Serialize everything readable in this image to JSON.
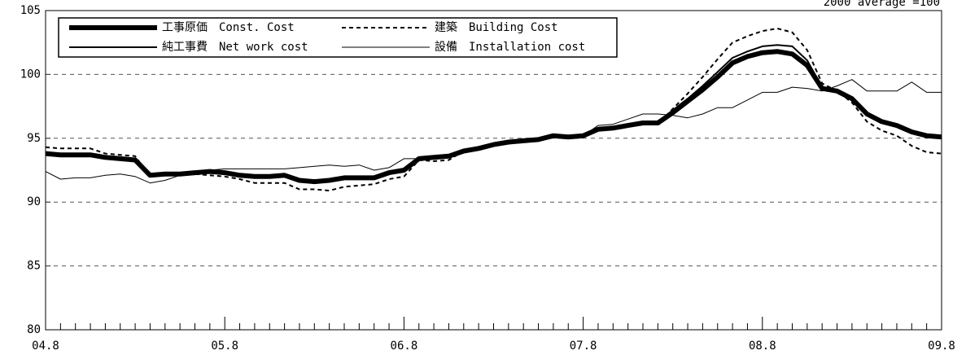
{
  "chart_data": {
    "type": "line",
    "note": "2000 average =100",
    "categories": [
      "04.8",
      null,
      null,
      null,
      null,
      null,
      null,
      null,
      null,
      null,
      null,
      null,
      "05.8",
      null,
      null,
      null,
      null,
      null,
      null,
      null,
      null,
      null,
      null,
      null,
      "06.8",
      null,
      null,
      null,
      null,
      null,
      null,
      null,
      null,
      null,
      null,
      null,
      "07.8",
      null,
      null,
      null,
      null,
      null,
      null,
      null,
      null,
      null,
      null,
      null,
      "08.8",
      null,
      null,
      null,
      null,
      null,
      null,
      null,
      null,
      null,
      null,
      null,
      "09.8"
    ],
    "series": [
      {
        "name": "工事原価　Const. Cost",
        "color": "#000000",
        "line_width": 6,
        "dashed": false,
        "values": [
          93.8,
          93.7,
          93.7,
          93.7,
          93.5,
          93.4,
          93.3,
          92.1,
          92.2,
          92.2,
          92.3,
          92.4,
          92.3,
          92.1,
          92.0,
          92.0,
          92.1,
          91.7,
          91.6,
          91.7,
          91.9,
          91.9,
          91.9,
          92.3,
          92.5,
          93.4,
          93.5,
          93.6,
          94.0,
          94.2,
          94.5,
          94.7,
          94.8,
          94.9,
          95.2,
          95.1,
          95.2,
          95.7,
          95.8,
          96.0,
          96.2,
          96.2,
          97.0,
          97.9,
          98.8,
          99.8,
          100.9,
          101.4,
          101.7,
          101.8,
          101.6,
          100.7,
          98.9,
          98.7,
          98.1,
          96.9,
          96.3,
          96.0,
          95.5,
          95.2,
          95.1
        ]
      },
      {
        "name": "純工事費　Net work cost",
        "color": "#000000",
        "line_width": 2,
        "dashed": false,
        "values": [
          93.8,
          93.7,
          93.7,
          93.7,
          93.5,
          93.4,
          93.3,
          92.1,
          92.2,
          92.2,
          92.3,
          92.4,
          92.3,
          92.1,
          92.0,
          92.0,
          92.1,
          91.8,
          91.7,
          91.8,
          91.9,
          91.9,
          91.9,
          92.3,
          92.5,
          93.4,
          93.5,
          93.7,
          94.0,
          94.2,
          94.5,
          94.7,
          94.8,
          94.9,
          95.2,
          95.1,
          95.2,
          95.8,
          95.9,
          96.1,
          96.3,
          96.3,
          97.2,
          98.1,
          99.1,
          100.2,
          101.3,
          101.8,
          102.2,
          102.3,
          102.2,
          101.1,
          99.0,
          98.7,
          98.1,
          96.9,
          96.3,
          96.0,
          95.5,
          95.2,
          95.1
        ]
      },
      {
        "name": "建築　Building Cost",
        "color": "#000000",
        "line_width": 2,
        "dashed": true,
        "values": [
          94.3,
          94.2,
          94.2,
          94.2,
          93.8,
          93.7,
          93.6,
          92.0,
          92.1,
          92.1,
          92.2,
          92.1,
          92.0,
          91.8,
          91.5,
          91.5,
          91.5,
          91.0,
          91.0,
          90.9,
          91.2,
          91.3,
          91.4,
          91.8,
          92.0,
          93.3,
          93.2,
          93.3,
          94.0,
          94.2,
          94.5,
          94.7,
          94.8,
          94.9,
          95.2,
          95.1,
          95.2,
          95.6,
          95.7,
          95.9,
          96.1,
          96.1,
          97.3,
          98.5,
          99.8,
          101.2,
          102.5,
          103.0,
          103.4,
          103.6,
          103.3,
          101.9,
          99.3,
          98.7,
          97.8,
          96.3,
          95.6,
          95.2,
          94.4,
          93.9,
          93.8
        ]
      },
      {
        "name": "設備　Installation cost",
        "color": "#000000",
        "line_width": 1,
        "dashed": false,
        "values": [
          92.4,
          91.8,
          91.9,
          91.9,
          92.1,
          92.2,
          92.0,
          91.5,
          91.7,
          92.1,
          92.3,
          92.5,
          92.6,
          92.6,
          92.6,
          92.6,
          92.6,
          92.7,
          92.8,
          92.9,
          92.8,
          92.9,
          92.5,
          92.7,
          93.4,
          93.4,
          93.4,
          93.5,
          93.9,
          94.2,
          94.5,
          94.7,
          94.9,
          95.0,
          95.1,
          95.1,
          95.2,
          96.0,
          96.1,
          96.5,
          96.9,
          96.9,
          96.8,
          96.6,
          96.9,
          97.4,
          97.4,
          98.0,
          98.6,
          98.6,
          99.0,
          98.9,
          98.7,
          99.1,
          99.6,
          98.7,
          98.7,
          98.7,
          99.4,
          98.6,
          98.6
        ]
      }
    ],
    "ylim": [
      80,
      105
    ],
    "yticks": [
      80,
      85,
      90,
      95,
      100,
      105
    ],
    "grid": true,
    "legend": "upper left"
  }
}
